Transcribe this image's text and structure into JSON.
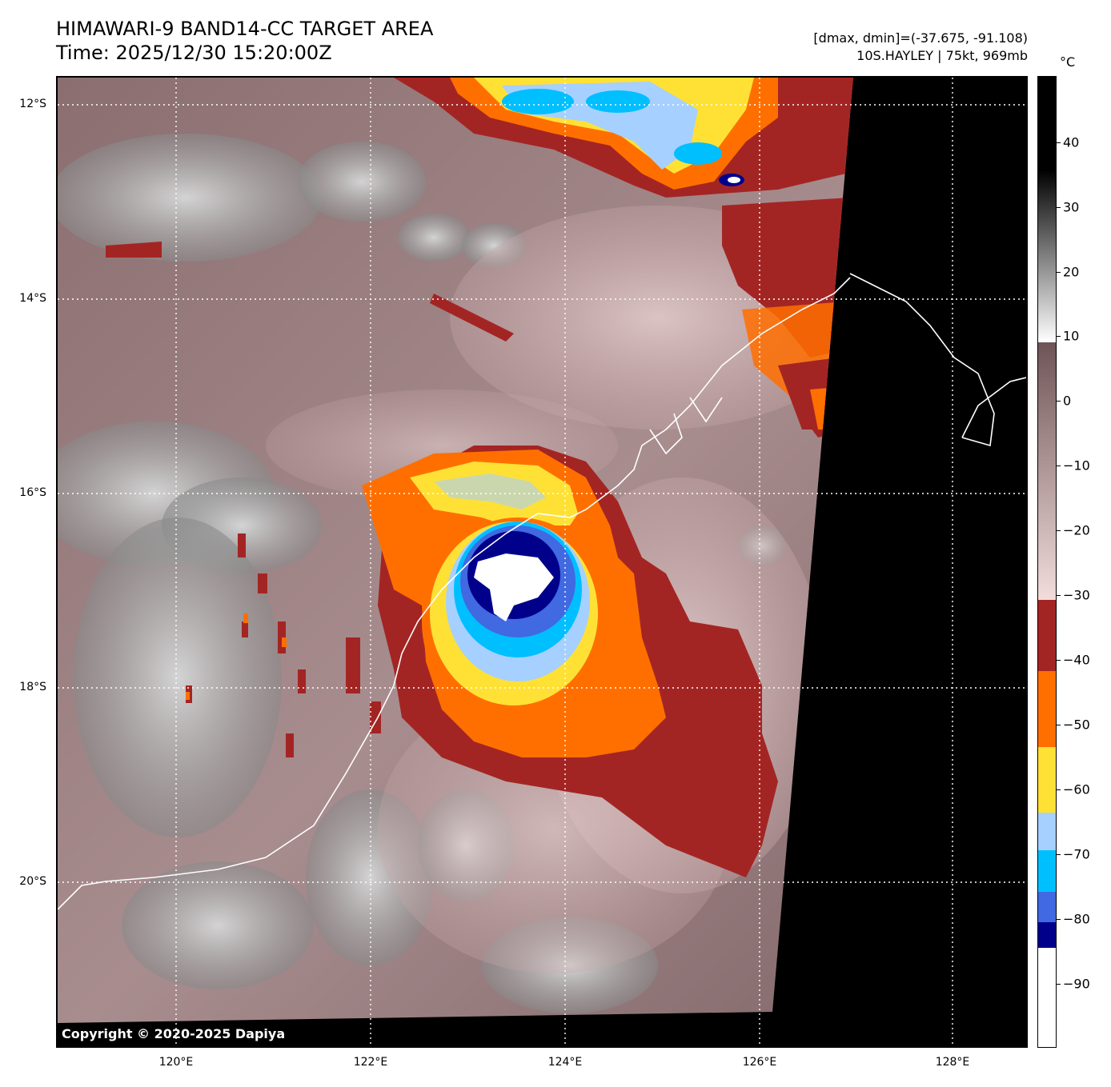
{
  "header": {
    "title_line1": "HIMAWARI-9 BAND14-CC TARGET AREA",
    "title_line2": "Time: 2025/12/30 15:20:00Z",
    "stats_line": "[dmax, dmin]=(-37.675, -91.108)",
    "storm_line": "10S.HAYLEY | 75kt, 969mb"
  },
  "map": {
    "copyright": "Copyright © 2020-2025 Dapiya",
    "lat_labels": [
      "12°S",
      "14°S",
      "16°S",
      "18°S",
      "20°S"
    ],
    "lon_labels": [
      "120°E",
      "122°E",
      "124°E",
      "126°E",
      "128°E"
    ],
    "gridlines": true,
    "storm_center": {
      "lat": -17.0,
      "lon": 123.5
    }
  },
  "colorbar": {
    "unit": "°C",
    "ticks": [
      "40",
      "30",
      "20",
      "10",
      "0",
      "−10",
      "−20",
      "−30",
      "−40",
      "−50",
      "−60",
      "−70",
      "−80",
      "−90"
    ],
    "colors": {
      "warm_top": "#000000",
      "gray_scale": "#ffffff",
      "brown": "#6e5456",
      "pink": "#f2dcdc",
      "dark_red": "#a32523",
      "orange": "#ff6f00",
      "yellow": "#ffe135",
      "light_blue": "#a6d0ff",
      "cyan": "#00bfff",
      "blue": "#4169e1",
      "navy": "#00008b",
      "white": "#ffffff"
    }
  }
}
